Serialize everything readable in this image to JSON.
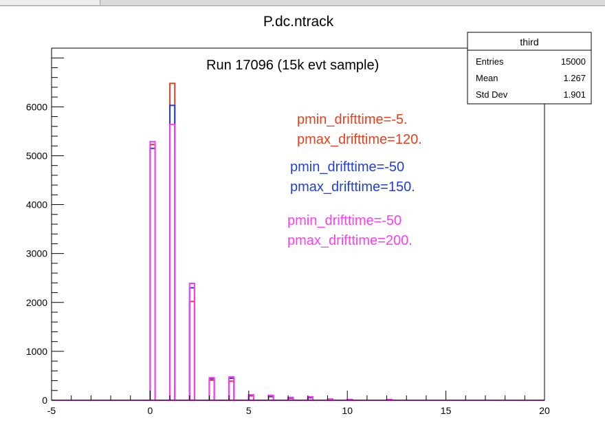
{
  "window": {
    "tab_label": ""
  },
  "chart_data": {
    "type": "bar",
    "title": "P.dc.ntrack",
    "subtitle": "Run 17096 (15k evt sample)",
    "xlabel": "",
    "ylabel": "",
    "xlim": [
      -5,
      20
    ],
    "ylim": [
      0,
      7200
    ],
    "grid": false,
    "bin_width": 0.25,
    "x_ticks": [
      "-5",
      "0",
      "5",
      "10",
      "15",
      "20"
    ],
    "y_ticks": [
      "0",
      "1000",
      "2000",
      "3000",
      "4000",
      "5000",
      "6000"
    ],
    "x_tick_values": [
      -5,
      0,
      5,
      10,
      15,
      20
    ],
    "y_tick_values": [
      0,
      1000,
      2000,
      3000,
      4000,
      5000,
      6000
    ],
    "categories": [
      0,
      1,
      2,
      3,
      4,
      5,
      6,
      7,
      8,
      9,
      10,
      12
    ],
    "series": [
      {
        "name": "pmin_drifttime=-5. pmax_drifttime=120.",
        "color": "#e8401c",
        "values": [
          5230,
          6480,
          2020,
          410,
          390,
          90,
          70,
          40,
          50,
          20,
          10,
          10
        ]
      },
      {
        "name": "pmin_drifttime=-50 pmax_drifttime=150.",
        "color": "#1f3fd6",
        "values": [
          5150,
          6030,
          2300,
          440,
          450,
          100,
          90,
          50,
          60,
          20,
          10,
          10
        ]
      },
      {
        "name": "pmin_drifttime=-50 pmax_drifttime=200.",
        "color": "#ff3cf6",
        "values": [
          5290,
          5640,
          2390,
          460,
          480,
          110,
          100,
          60,
          70,
          25,
          12,
          12
        ]
      }
    ],
    "annotations": [
      {
        "lines": [
          "pmin_drifttime=-5.",
          "pmax_drifttime=120."
        ],
        "color": "#e8401c"
      },
      {
        "lines": [
          "pmin_drifttime=-50",
          "pmax_drifttime=150."
        ],
        "color": "#1f3fd6"
      },
      {
        "lines": [
          "pmin_drifttime=-50",
          "pmax_drifttime=200."
        ],
        "color": "#ff3cf6"
      }
    ],
    "stats_box": {
      "title": "third",
      "rows": [
        {
          "label": "Entries",
          "value": "15000"
        },
        {
          "label": "Mean",
          "value": "1.267"
        },
        {
          "label": "Std Dev",
          "value": "1.901"
        }
      ],
      "placement": "top-right"
    }
  }
}
